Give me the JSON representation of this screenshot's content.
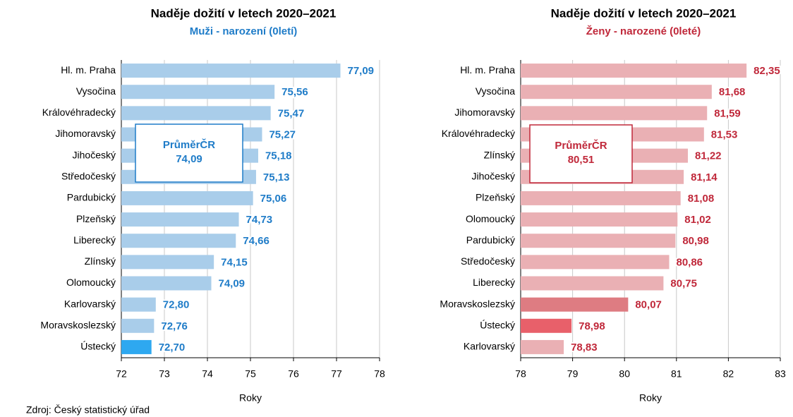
{
  "chart_data": [
    {
      "type": "barh",
      "title": "Naděje dožití v letech 2020–2021",
      "subtitle": "Muži - narození (0letí)",
      "x_label": "Roky",
      "categories": [
        "Hl. m. Praha",
        "Vysočina",
        "Královéhradecký",
        "Jihomoravský",
        "Jihočeský",
        "Středočeský",
        "Pardubický",
        "Plzeňský",
        "Liberecký",
        "Zlínský",
        "Olomoucký",
        "Karlovarský",
        "Moravskoslezský",
        "Ústecký"
      ],
      "values": [
        77.09,
        75.56,
        75.47,
        75.27,
        75.18,
        75.13,
        75.06,
        74.73,
        74.66,
        74.15,
        74.09,
        72.8,
        72.76,
        72.7
      ],
      "value_labels": [
        "77,09",
        "75,56",
        "75,47",
        "75,27",
        "75,18",
        "75,13",
        "75,06",
        "74,73",
        "74,66",
        "74,15",
        "74,09",
        "72,80",
        "72,76",
        "72,70"
      ],
      "colors": [
        "#a9cdea",
        "#a9cdea",
        "#a9cdea",
        "#a9cdea",
        "#a9cdea",
        "#a9cdea",
        "#a9cdea",
        "#a9cdea",
        "#a9cdea",
        "#a9cdea",
        "#a9cdea",
        "#a9cdea",
        "#a9cdea",
        "#2ea8f0"
      ],
      "label_color": "#1f7cc8",
      "average": {
        "label": "PrůměrČR",
        "value": 74.09,
        "value_label": "74,09"
      },
      "xlim": [
        72,
        78
      ],
      "xticks": [
        72,
        73,
        74,
        75,
        76,
        77,
        78
      ],
      "grid": true
    },
    {
      "type": "barh",
      "title": "Naděje dožití v letech 2020–2021",
      "subtitle": "Ženy - narozené (0leté)",
      "x_label": "Roky",
      "categories": [
        "Hl. m. Praha",
        "Vysočina",
        "Jihomoravský",
        "Královéhradecký",
        "Zlínský",
        "Jihočeský",
        "Plzeňský",
        "Olomoucký",
        "Pardubický",
        "Středočeský",
        "Liberecký",
        "Moravskoslezský",
        "Ústecký",
        "Karlovarský"
      ],
      "values": [
        82.35,
        81.68,
        81.59,
        81.53,
        81.22,
        81.14,
        81.08,
        81.02,
        80.98,
        80.86,
        80.75,
        80.07,
        78.98,
        78.83
      ],
      "value_labels": [
        "82,35",
        "81,68",
        "81,59",
        "81,53",
        "81,22",
        "81,14",
        "81,08",
        "81,02",
        "80,98",
        "80,86",
        "80,75",
        "80,07",
        "78,98",
        "78,83"
      ],
      "colors": [
        "#eab0b4",
        "#eab0b4",
        "#eab0b4",
        "#eab0b4",
        "#eab0b4",
        "#eab0b4",
        "#eab0b4",
        "#eab0b4",
        "#eab0b4",
        "#eab0b4",
        "#eab0b4",
        "#de7c82",
        "#e8606a",
        "#eab0b4"
      ],
      "label_color": "#c0283a",
      "average": {
        "label": "PrůměrČR",
        "value": 80.51,
        "value_label": "80,51"
      },
      "xlim": [
        78,
        83
      ],
      "xticks": [
        78,
        79,
        80,
        81,
        82,
        83
      ],
      "grid": true
    }
  ],
  "source": "Zdroj: Český statistický úřad"
}
